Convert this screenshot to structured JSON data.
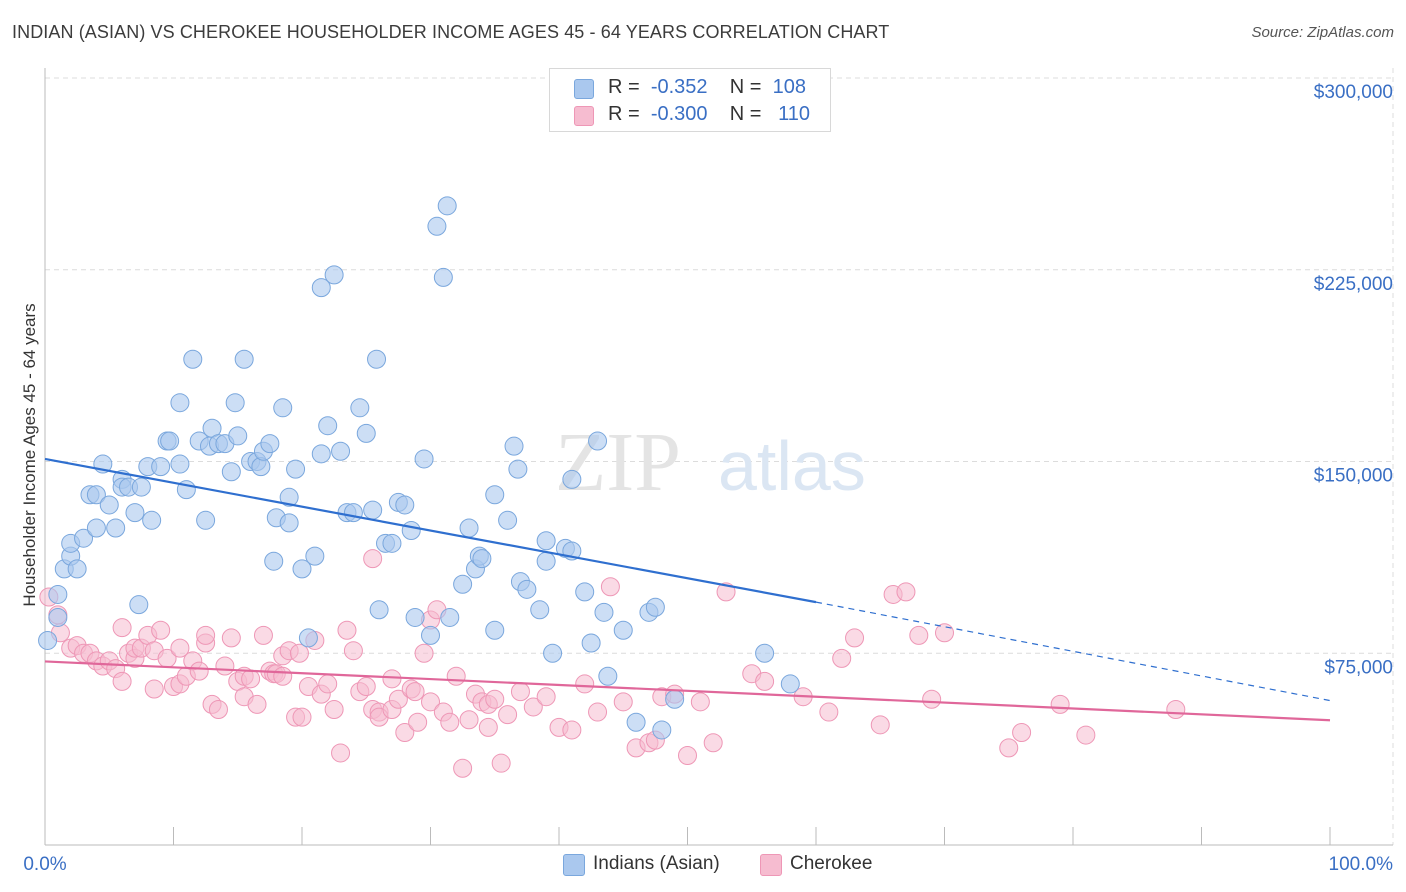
{
  "title": "INDIAN (ASIAN) VS CHEROKEE HOUSEHOLDER INCOME AGES 45 - 64 YEARS CORRELATION CHART",
  "source": "Source: ZipAtlas.com",
  "watermark": {
    "zip": "ZIP",
    "atlas": "atlas"
  },
  "legend": {
    "r_label": "R =",
    "n_label": "N =",
    "rows": [
      {
        "r": "-0.352",
        "n": "108"
      },
      {
        "r": "-0.300",
        "n": "110"
      }
    ]
  },
  "bottom_legend": [
    "Indians (Asian)",
    "Cherokee"
  ],
  "colors": {
    "blue_fill": "#aac8ee",
    "blue_stroke": "#7aa7dd",
    "blue_line": "#2f6fcf",
    "pink_fill": "#f6bcd0",
    "pink_stroke": "#ee97b6",
    "pink_line": "#e0679a",
    "axis_text": "#3a6fc4",
    "grid": "#dcdcdc"
  },
  "chart_data": {
    "type": "scatter",
    "title": "INDIAN (ASIAN) VS CHEROKEE HOUSEHOLDER INCOME AGES 45 - 64 YEARS CORRELATION CHART",
    "xlabel": "",
    "ylabel": "Householder Income Ages 45 - 64 years",
    "x_tick_labels": [
      "0.0%",
      "100.0%"
    ],
    "y_tick_labels": [
      "$75,000",
      "$150,000",
      "$225,000",
      "$300,000"
    ],
    "y_ticks": [
      75000,
      150000,
      225000,
      300000
    ],
    "xlim": [
      0,
      100
    ],
    "ylim": [
      0,
      300000
    ],
    "grid": true,
    "legend_position": "top-center",
    "series": [
      {
        "name": "Indians (Asian)",
        "r": -0.352,
        "n": 108,
        "trend": {
          "x0": 0,
          "y0": 151000,
          "x1": 60,
          "y1": 95000,
          "dashed_to_x": 100,
          "dashed_to_y": 56500
        },
        "points": [
          [
            0.2,
            80000
          ],
          [
            1,
            89000
          ],
          [
            1,
            98000
          ],
          [
            1.5,
            108000
          ],
          [
            2,
            113000
          ],
          [
            2,
            118000
          ],
          [
            2.5,
            108000
          ],
          [
            3,
            120000
          ],
          [
            3.5,
            137000
          ],
          [
            4,
            137000
          ],
          [
            4,
            124000
          ],
          [
            4.5,
            149000
          ],
          [
            5,
            133000
          ],
          [
            5.5,
            124000
          ],
          [
            6,
            143000
          ],
          [
            6,
            140000
          ],
          [
            6.5,
            140000
          ],
          [
            7,
            130000
          ],
          [
            7.3,
            94000
          ],
          [
            7.5,
            140000
          ],
          [
            8,
            148000
          ],
          [
            8.3,
            127000
          ],
          [
            9,
            148000
          ],
          [
            9.5,
            158000
          ],
          [
            9.7,
            158000
          ],
          [
            10.5,
            149000
          ],
          [
            10.5,
            173000
          ],
          [
            11,
            139000
          ],
          [
            11.5,
            190000
          ],
          [
            12,
            158000
          ],
          [
            12.5,
            127000
          ],
          [
            12.8,
            156000
          ],
          [
            13,
            163000
          ],
          [
            13.5,
            157000
          ],
          [
            14,
            157000
          ],
          [
            14.5,
            146000
          ],
          [
            14.8,
            173000
          ],
          [
            15,
            160000
          ],
          [
            15.5,
            190000
          ],
          [
            16,
            150000
          ],
          [
            16.5,
            150000
          ],
          [
            16.8,
            148000
          ],
          [
            17,
            154000
          ],
          [
            17.5,
            157000
          ],
          [
            17.8,
            111000
          ],
          [
            18,
            128000
          ],
          [
            18.5,
            171000
          ],
          [
            19,
            136000
          ],
          [
            19,
            126000
          ],
          [
            19.5,
            147000
          ],
          [
            20,
            108000
          ],
          [
            20.5,
            81000
          ],
          [
            21,
            113000
          ],
          [
            21.5,
            153000
          ],
          [
            21.5,
            218000
          ],
          [
            22,
            164000
          ],
          [
            22.5,
            223000
          ],
          [
            23,
            154000
          ],
          [
            23.5,
            130000
          ],
          [
            24,
            130000
          ],
          [
            24.5,
            171000
          ],
          [
            25,
            161000
          ],
          [
            25.5,
            131000
          ],
          [
            25.8,
            190000
          ],
          [
            26,
            92000
          ],
          [
            26.5,
            118000
          ],
          [
            27,
            118000
          ],
          [
            27.5,
            134000
          ],
          [
            28,
            133000
          ],
          [
            28.5,
            123000
          ],
          [
            28.8,
            89000
          ],
          [
            29.5,
            151000
          ],
          [
            30,
            82000
          ],
          [
            30.5,
            242000
          ],
          [
            31,
            222000
          ],
          [
            31.3,
            250000
          ],
          [
            31.5,
            89000
          ],
          [
            32.5,
            102000
          ],
          [
            33,
            124000
          ],
          [
            33.5,
            108000
          ],
          [
            33.8,
            113000
          ],
          [
            34,
            112000
          ],
          [
            35,
            84000
          ],
          [
            35,
            137000
          ],
          [
            36,
            127000
          ],
          [
            36.5,
            156000
          ],
          [
            36.8,
            147000
          ],
          [
            37,
            103000
          ],
          [
            37.5,
            100000
          ],
          [
            38.5,
            92000
          ],
          [
            39,
            111000
          ],
          [
            39,
            119000
          ],
          [
            39.5,
            75000
          ],
          [
            40.5,
            116000
          ],
          [
            41,
            143000
          ],
          [
            41,
            115000
          ],
          [
            42,
            99000
          ],
          [
            42.5,
            79000
          ],
          [
            43,
            158000
          ],
          [
            43.5,
            91000
          ],
          [
            43.8,
            66000
          ],
          [
            45,
            84000
          ],
          [
            46,
            48000
          ],
          [
            47,
            91000
          ],
          [
            47.5,
            93000
          ],
          [
            48,
            45000
          ],
          [
            49,
            57000
          ],
          [
            56,
            75000
          ],
          [
            58,
            63000
          ]
        ]
      },
      {
        "name": "Cherokee",
        "r": -0.3,
        "n": 110,
        "trend": {
          "x0": 0,
          "y0": 71800,
          "x1": 100,
          "y1": 48800
        },
        "points": [
          [
            0.3,
            97000
          ],
          [
            1,
            90000
          ],
          [
            1.2,
            83000
          ],
          [
            2,
            77000
          ],
          [
            2.5,
            78000
          ],
          [
            3,
            75000
          ],
          [
            3.5,
            75000
          ],
          [
            4,
            72000
          ],
          [
            4.5,
            70000
          ],
          [
            5,
            72000
          ],
          [
            5.5,
            69000
          ],
          [
            6,
            64000
          ],
          [
            6,
            85000
          ],
          [
            6.5,
            75000
          ],
          [
            7,
            73000
          ],
          [
            7,
            77000
          ],
          [
            7.5,
            77000
          ],
          [
            8,
            82000
          ],
          [
            8.5,
            76000
          ],
          [
            8.5,
            61000
          ],
          [
            9,
            84000
          ],
          [
            9.5,
            73000
          ],
          [
            10,
            62000
          ],
          [
            10.5,
            63000
          ],
          [
            10.5,
            77000
          ],
          [
            11,
            66000
          ],
          [
            11.5,
            72000
          ],
          [
            12,
            68000
          ],
          [
            12.5,
            79000
          ],
          [
            12.5,
            82000
          ],
          [
            13,
            55000
          ],
          [
            13.5,
            53000
          ],
          [
            14,
            70000
          ],
          [
            14.5,
            81000
          ],
          [
            15,
            64000
          ],
          [
            15.5,
            66000
          ],
          [
            15.5,
            58000
          ],
          [
            16,
            65000
          ],
          [
            16.5,
            55000
          ],
          [
            17,
            82000
          ],
          [
            17.5,
            68000
          ],
          [
            17.8,
            67000
          ],
          [
            18,
            67000
          ],
          [
            18.5,
            74000
          ],
          [
            18.5,
            66000
          ],
          [
            19,
            76000
          ],
          [
            19.5,
            50000
          ],
          [
            19.8,
            75000
          ],
          [
            20,
            50000
          ],
          [
            20.5,
            62000
          ],
          [
            21,
            80000
          ],
          [
            21.5,
            59000
          ],
          [
            22,
            63000
          ],
          [
            22.5,
            53000
          ],
          [
            23,
            36000
          ],
          [
            23.5,
            84000
          ],
          [
            24,
            76000
          ],
          [
            24.5,
            60000
          ],
          [
            25,
            62000
          ],
          [
            25.5,
            112000
          ],
          [
            25.5,
            53000
          ],
          [
            26,
            52000
          ],
          [
            26,
            50000
          ],
          [
            27,
            65000
          ],
          [
            27,
            53000
          ],
          [
            27.5,
            57000
          ],
          [
            28,
            44000
          ],
          [
            28.5,
            61000
          ],
          [
            28.8,
            60000
          ],
          [
            29,
            48000
          ],
          [
            29.5,
            75000
          ],
          [
            30,
            56000
          ],
          [
            30,
            88000
          ],
          [
            30.5,
            92000
          ],
          [
            31,
            52000
          ],
          [
            31.5,
            48000
          ],
          [
            32,
            66000
          ],
          [
            32.5,
            30000
          ],
          [
            33,
            49000
          ],
          [
            33.5,
            59000
          ],
          [
            34,
            56000
          ],
          [
            34.5,
            55000
          ],
          [
            34.5,
            46000
          ],
          [
            35,
            57000
          ],
          [
            35.5,
            32000
          ],
          [
            36,
            51000
          ],
          [
            37,
            60000
          ],
          [
            38,
            54000
          ],
          [
            39,
            58000
          ],
          [
            40,
            46000
          ],
          [
            41,
            45000
          ],
          [
            42,
            63000
          ],
          [
            43,
            52000
          ],
          [
            44,
            101000
          ],
          [
            45,
            56000
          ],
          [
            46,
            38000
          ],
          [
            47,
            40000
          ],
          [
            47.5,
            41000
          ],
          [
            48,
            58000
          ],
          [
            49,
            59000
          ],
          [
            50,
            35000
          ],
          [
            51,
            56000
          ],
          [
            52,
            40000
          ],
          [
            53,
            99000
          ],
          [
            55,
            67000
          ],
          [
            56,
            64000
          ],
          [
            59,
            58000
          ],
          [
            61,
            52000
          ],
          [
            62,
            73000
          ],
          [
            63,
            81000
          ],
          [
            65,
            47000
          ],
          [
            66,
            98000
          ],
          [
            67,
            99000
          ],
          [
            68,
            82000
          ],
          [
            69,
            57000
          ],
          [
            70,
            83000
          ],
          [
            75,
            38000
          ],
          [
            76,
            44000
          ],
          [
            79,
            55000
          ],
          [
            81,
            43000
          ],
          [
            88,
            53000
          ]
        ]
      }
    ]
  }
}
